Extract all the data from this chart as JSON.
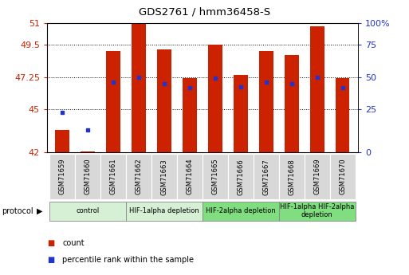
{
  "title": "GDS2761 / hmm36458-S",
  "samples": [
    "GSM71659",
    "GSM71660",
    "GSM71661",
    "GSM71662",
    "GSM71663",
    "GSM71664",
    "GSM71665",
    "GSM71666",
    "GSM71667",
    "GSM71668",
    "GSM71669",
    "GSM71670"
  ],
  "bar_heights": [
    43.6,
    42.1,
    49.1,
    51.0,
    49.2,
    47.2,
    49.5,
    47.4,
    49.1,
    48.8,
    50.8,
    47.2
  ],
  "blue_dot_y": [
    44.8,
    43.6,
    46.9,
    47.25,
    46.8,
    46.5,
    47.2,
    46.6,
    46.9,
    46.8,
    47.25,
    46.5
  ],
  "ymin": 42,
  "ymax": 51,
  "yticks_left": [
    42,
    45,
    47.25,
    49.5,
    51
  ],
  "yticks_right_vals": [
    0,
    25,
    50,
    75,
    100
  ],
  "yticks_right_pos": [
    42,
    45,
    47.25,
    49.5,
    51
  ],
  "bar_color": "#cc2200",
  "blue_color": "#2233cc",
  "protocols": [
    {
      "label": "control",
      "start": 0,
      "end": 3,
      "color": "#d5f0d5"
    },
    {
      "label": "HIF-1alpha depletion",
      "start": 3,
      "end": 6,
      "color": "#d5f0d5"
    },
    {
      "label": "HIF-2alpha depletion",
      "start": 6,
      "end": 9,
      "color": "#80dd80"
    },
    {
      "label": "HIF-1alpha HIF-2alpha\ndepletion",
      "start": 9,
      "end": 12,
      "color": "#80dd80"
    }
  ],
  "legend_items": [
    {
      "label": "count",
      "color": "#cc2200"
    },
    {
      "label": "percentile rank within the sample",
      "color": "#2233cc"
    }
  ]
}
